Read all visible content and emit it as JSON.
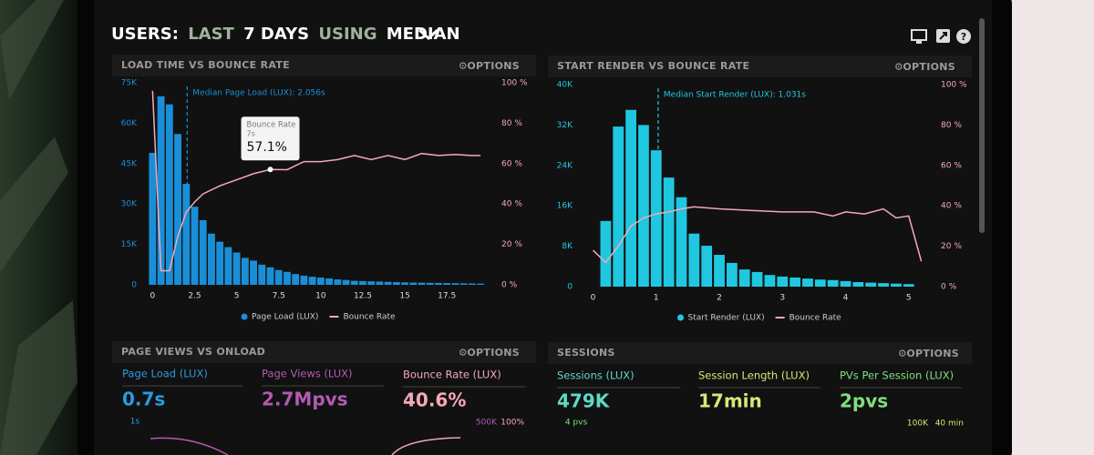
{
  "header": {
    "title_parts": [
      "USERS:",
      "LAST",
      "7 DAYS",
      "USING",
      "MEDIAN"
    ]
  },
  "chart_data": [
    {
      "type": "bar",
      "title": "LOAD TIME VS BOUNCE RATE",
      "options": "OPTIONS",
      "x": [
        0,
        0.5,
        1,
        1.5,
        2,
        2.5,
        3,
        3.5,
        4,
        4.5,
        5,
        5.5,
        6,
        6.5,
        7,
        7.5,
        8,
        8.5,
        9,
        9.5,
        10,
        10.5,
        11,
        11.5,
        12,
        12.5,
        13,
        13.5,
        14,
        14.5,
        15,
        15.5,
        16,
        16.5,
        17,
        17.5,
        18,
        18.5,
        19,
        19.5
      ],
      "series": [
        {
          "name": "Page Load (LUX)",
          "color": "#1a8fd8",
          "values": [
            49000,
            70000,
            67000,
            56000,
            37500,
            29000,
            24000,
            19000,
            16000,
            14000,
            12000,
            10000,
            9000,
            7500,
            6500,
            5500,
            4800,
            4000,
            3400,
            3000,
            2700,
            2400,
            2000,
            1800,
            1500,
            1400,
            1300,
            1200,
            1100,
            1000,
            900,
            850,
            800,
            750,
            700,
            650,
            600,
            550,
            500,
            450
          ]
        },
        {
          "name": "Bounce Rate",
          "color": "#f4a9b8",
          "type": "line",
          "axis": "y2",
          "x": [
            0,
            0.5,
            1,
            1.5,
            2,
            2.5,
            3,
            4,
            5,
            6,
            7,
            8,
            9,
            10,
            11,
            12,
            13,
            14,
            15,
            16,
            17,
            18,
            19,
            19.5
          ],
          "values": [
            96,
            7,
            7,
            24,
            36,
            41,
            45,
            49,
            52,
            55,
            57.1,
            57,
            61,
            61,
            62,
            64,
            62,
            64,
            62,
            65,
            64,
            64.5,
            64,
            64
          ]
        }
      ],
      "xlim": [
        -0.4,
        20.2
      ],
      "xticks": [
        0,
        2.5,
        5,
        7.5,
        10,
        12.5,
        15,
        17.5
      ],
      "ylim": [
        0,
        75000
      ],
      "yticks": [
        0,
        {
          "value": 15000,
          "label": "15K"
        },
        {
          "value": 30000,
          "label": "30K"
        },
        {
          "value": 45000,
          "label": "45K"
        },
        {
          "value": 60000,
          "label": "60K"
        },
        {
          "value": 75000,
          "label": "75K"
        }
      ],
      "y2lim": [
        0,
        100
      ],
      "y2ticks": [
        {
          "value": 0,
          "label": "0 %"
        },
        {
          "value": 20,
          "label": "20 %"
        },
        {
          "value": 40,
          "label": "40 %"
        },
        {
          "value": 60,
          "label": "60 %"
        },
        {
          "value": 80,
          "label": "80 %"
        },
        {
          "value": 100,
          "label": "100 %"
        }
      ],
      "median": {
        "text": "Median Page Load (LUX): 2.056s",
        "x": 2.056
      },
      "tooltip": {
        "title": "Bounce Rate",
        "x_label": "7s",
        "x": 7,
        "value": 57.1,
        "value_label": "57.1%"
      }
    },
    {
      "type": "bar",
      "title": "START RENDER VS BOUNCE RATE",
      "options": "OPTIONS",
      "x": [
        0.2,
        0.4,
        0.6,
        0.8,
        1,
        1.2,
        1.4,
        1.6,
        1.8,
        2,
        2.2,
        2.4,
        2.6,
        2.8,
        3,
        3.2,
        3.4,
        3.6,
        3.8,
        4,
        4.2,
        4.4,
        4.6,
        4.8,
        5
      ],
      "series": [
        {
          "name": "Start Render (LUX)",
          "color": "#1fc8e0",
          "values": [
            13000,
            31700,
            35000,
            32000,
            27000,
            21600,
            17700,
            10500,
            8100,
            6300,
            4700,
            3400,
            2900,
            2300,
            2000,
            1800,
            1600,
            1400,
            1300,
            1100,
            900,
            800,
            700,
            600,
            500
          ]
        },
        {
          "name": "Bounce Rate",
          "color": "#f4a9b8",
          "type": "line",
          "axis": "y2",
          "x": [
            0,
            0.2,
            0.4,
            0.6,
            0.8,
            1,
            1.2,
            1.4,
            1.6,
            2,
            2.5,
            3,
            3.5,
            3.8,
            4,
            4.3,
            4.6,
            4.8,
            5,
            5.2
          ],
          "values": [
            18,
            12,
            20,
            30,
            34,
            36,
            37,
            38.5,
            39.5,
            38.5,
            37.7,
            37,
            37,
            35,
            37,
            36,
            38.5,
            34,
            35,
            12.5
          ]
        }
      ],
      "xlim": [
        -0.08,
        5.22
      ],
      "xticks": [
        0,
        1,
        2,
        3,
        4,
        5
      ],
      "ylim": [
        0,
        40000
      ],
      "yticks": [
        0,
        {
          "value": 8000,
          "label": "8K"
        },
        {
          "value": 16000,
          "label": "16K"
        },
        {
          "value": 24000,
          "label": "24K"
        },
        {
          "value": 32000,
          "label": "32K"
        },
        {
          "value": 40000,
          "label": "40K"
        }
      ],
      "y2lim": [
        0,
        100
      ],
      "y2ticks": [
        {
          "value": 0,
          "label": "0 %"
        },
        {
          "value": 20,
          "label": "20 %"
        },
        {
          "value": 40,
          "label": "40 %"
        },
        {
          "value": 60,
          "label": "60 %"
        },
        {
          "value": 80,
          "label": "80 %"
        },
        {
          "value": 100,
          "label": "100 %"
        }
      ],
      "median": {
        "text": "Median Start Render (LUX): 1.031s",
        "x": 1.031
      }
    }
  ],
  "bottom_panels": [
    {
      "title": "PAGE VIEWS VS ONLOAD",
      "options": "OPTIONS",
      "metrics": [
        {
          "label": "Page Load (LUX)",
          "value": "0.7s"
        },
        {
          "label": "Page Views (LUX)",
          "value": "2.7Mpvs"
        },
        {
          "label": "Bounce Rate (LUX)",
          "value": "40.6%"
        }
      ],
      "axis_labels": [
        "1s",
        "500K",
        "100%"
      ]
    },
    {
      "title": "SESSIONS",
      "options": "OPTIONS",
      "metrics": [
        {
          "label": "Sessions (LUX)",
          "value": "479K"
        },
        {
          "label": "Session Length (LUX)",
          "value": "17min"
        },
        {
          "label": "PVs Per Session (LUX)",
          "value": "2pvs"
        }
      ],
      "axis_labels": [
        "4 pvs",
        "100K",
        "40 min"
      ]
    }
  ]
}
